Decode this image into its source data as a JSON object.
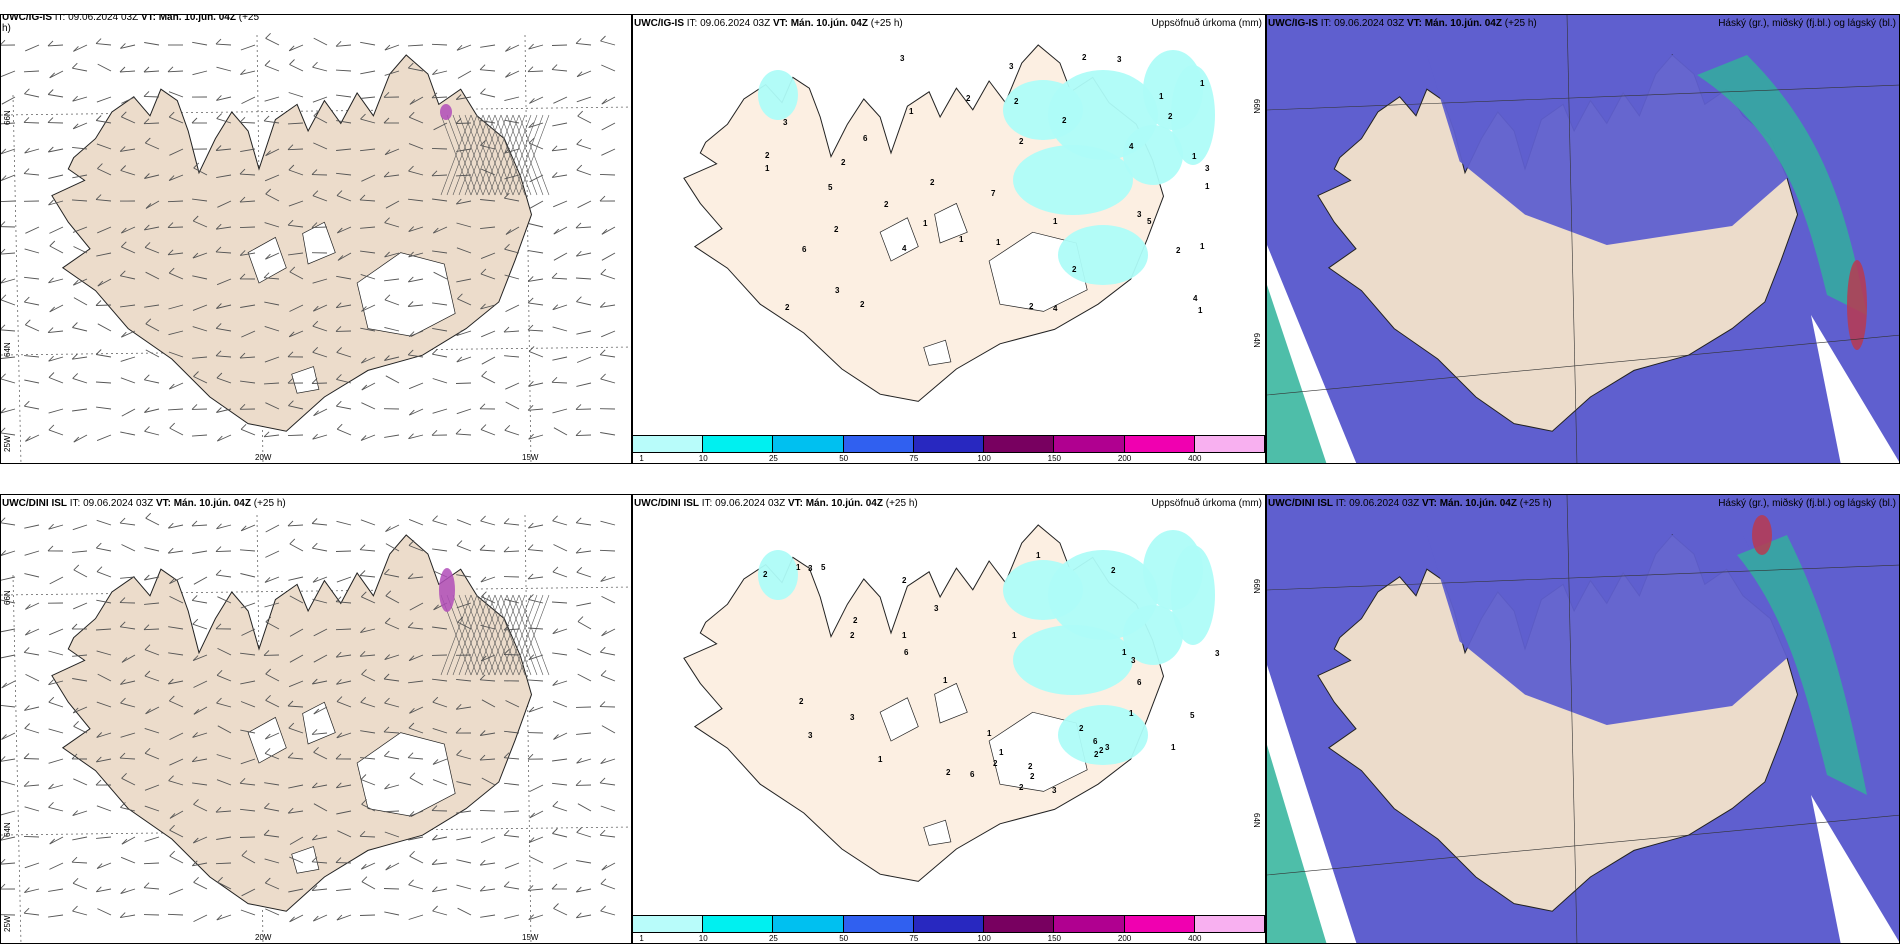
{
  "colors": {
    "land": "#ecdccb",
    "land_precip": "#fcefe2",
    "sea": "#ffffff",
    "cloud_high": "#5f5fcf",
    "cloud_mid": "#2fb39a",
    "cloud_low": "#b83a50",
    "precip_light": "#aefcf8",
    "wind_barb": "#555555"
  },
  "rows": [
    {
      "wind": {
        "title_bold": "UWC/IG-IS",
        "title_rest": " IT: 09.06.2024 03Z ",
        "vt_bold": "VT: Mán. 10.jún. 04Z",
        "lead": " (+25",
        "lead_wrap": "h)",
        "lat_labels": [
          "66N",
          "64N",
          "25W"
        ],
        "lon_labels": [
          "20W",
          "15W"
        ]
      },
      "precip": {
        "title_bold": "UWC/IG-IS",
        "title_rest": " IT: 09.06.2024 03Z ",
        "vt_bold": "VT: Mán. 10.jún. 04Z",
        "lead": " (+25 h)",
        "right": "Uppsöfnuð úrkoma (mm)",
        "lat_labels": [
          "66N",
          "64N"
        ]
      },
      "cloud": {
        "title_bold": "UWC/IG-IS",
        "title_rest": " IT: 09.06.2024 03Z ",
        "vt_bold": "VT: Mán. 10.jún. 04Z",
        "lead": " (+25 h)",
        "right": "Háský (gr.), miðský (fj.bl.) og lágský (bl.)"
      }
    },
    {
      "wind": {
        "title_bold": "UWC/DINI ISL",
        "title_rest": " IT: 09.06.2024 03Z ",
        "vt_bold": "VT: Mán. 10.jún. 04Z",
        "lead": " (+25 h)",
        "lead_wrap": "",
        "lat_labels": [
          "66N",
          "64N",
          "25W"
        ],
        "lon_labels": [
          "20W",
          "15W"
        ]
      },
      "precip": {
        "title_bold": "UWC/DINI ISL",
        "title_rest": " IT: 09.06.2024 03Z ",
        "vt_bold": "VT: Mán. 10.jún. 04Z",
        "lead": " (+25 h)",
        "right": "Uppsöfnuð úrkoma (mm)",
        "lat_labels": [
          "66N",
          "64N"
        ]
      },
      "cloud": {
        "title_bold": "UWC/DINI ISL",
        "title_rest": " IT: 09.06.2024 03Z ",
        "vt_bold": "VT: Mán. 10.jún. 04Z",
        "lead": " (+25 h)",
        "right": "Háský (gr.), miðský (fj.bl.) og lágský (bl.)"
      }
    }
  ],
  "precip_legend": {
    "ticks": [
      "1",
      "10",
      "25",
      "50",
      "75",
      "100",
      "150",
      "200",
      "400"
    ],
    "colors": [
      "#b8fcfa",
      "#00f0f0",
      "#00c0f0",
      "#3060f0",
      "#2828c0",
      "#780060",
      "#b00090",
      "#f000b0",
      "#f8b0f0"
    ]
  },
  "precip_values_top": [
    "1",
    "1",
    "2",
    "3",
    "2",
    "1",
    "1",
    "2",
    "2",
    "1",
    "6",
    "5",
    "4",
    "4",
    "6",
    "7",
    "2",
    "2",
    "3",
    "2",
    "4",
    "2",
    "3",
    "2",
    "2",
    "3",
    "2",
    "2",
    "2",
    "1",
    "2",
    "1",
    "5",
    "3",
    "2",
    "1",
    "1",
    "1",
    "2",
    "3",
    "4",
    "3",
    "1",
    "1"
  ],
  "precip_values_bottom": [
    "2",
    "1",
    "1",
    "2",
    "3",
    "3",
    "2",
    "2",
    "1",
    "2",
    "3",
    "1",
    "6",
    "3",
    "2",
    "2",
    "6",
    "2",
    "5",
    "3",
    "5",
    "6",
    "2",
    "6",
    "2",
    "1",
    "1",
    "2",
    "2",
    "1",
    "1",
    "2",
    "1",
    "1",
    "2",
    "3",
    "3",
    "3",
    "1"
  ]
}
